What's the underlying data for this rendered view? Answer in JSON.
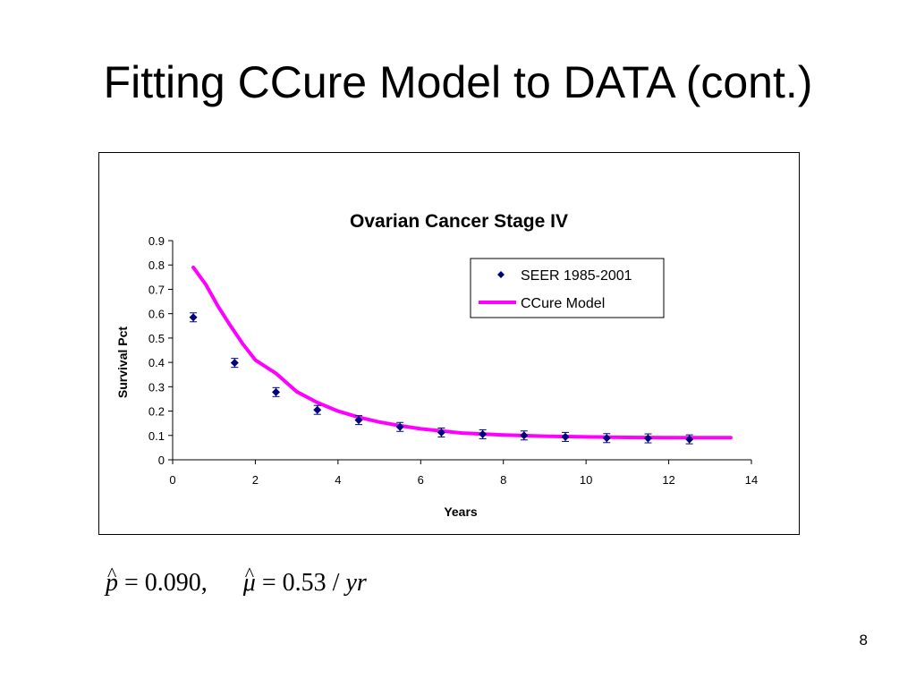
{
  "slide": {
    "title": "Fitting CCure Model to DATA (cont.)",
    "page_number": "8"
  },
  "formula": {
    "p_symbol": "p",
    "p_value": "= 0.090,",
    "mu_symbol": "μ",
    "mu_value": "= 0.53 /",
    "unit": "yr"
  },
  "chart_data": {
    "type": "scatter",
    "title": "Ovarian Cancer Stage IV",
    "xlabel": "Years",
    "ylabel": "Survival Pct",
    "xlim": [
      0,
      14
    ],
    "ylim": [
      0,
      0.9
    ],
    "x_ticks": [
      "0",
      "2",
      "4",
      "6",
      "8",
      "10",
      "12",
      "14"
    ],
    "y_ticks": [
      "0",
      "0.1",
      "0.2",
      "0.3",
      "0.4",
      "0.5",
      "0.6",
      "0.7",
      "0.8",
      "0.9"
    ],
    "grid": false,
    "legend_position": "top-right",
    "series": [
      {
        "name": "SEER 1985-2001",
        "type": "scatter",
        "marker": "diamond",
        "color": "#000080",
        "error_bars": true,
        "x": [
          0.5,
          1.5,
          2.5,
          3.5,
          4.5,
          5.5,
          6.5,
          7.5,
          8.5,
          9.5,
          10.5,
          11.5,
          12.5
        ],
        "y": [
          0.585,
          0.398,
          0.278,
          0.205,
          0.163,
          0.135,
          0.112,
          0.105,
          0.1,
          0.094,
          0.089,
          0.088,
          0.084
        ]
      },
      {
        "name": "CCure Model",
        "type": "line",
        "color": "#ff00ff",
        "x": [
          0.5,
          0.8,
          1.1,
          1.4,
          1.7,
          2.0,
          2.5,
          3.0,
          3.5,
          4.0,
          4.5,
          5.0,
          5.5,
          6.0,
          7.0,
          8.0,
          9.0,
          10.0,
          11.0,
          12.0,
          13.0,
          13.5
        ],
        "y": [
          0.79,
          0.72,
          0.63,
          0.55,
          0.475,
          0.41,
          0.355,
          0.28,
          0.235,
          0.2,
          0.175,
          0.155,
          0.14,
          0.127,
          0.11,
          0.102,
          0.097,
          0.094,
          0.092,
          0.091,
          0.091,
          0.091
        ]
      }
    ]
  }
}
